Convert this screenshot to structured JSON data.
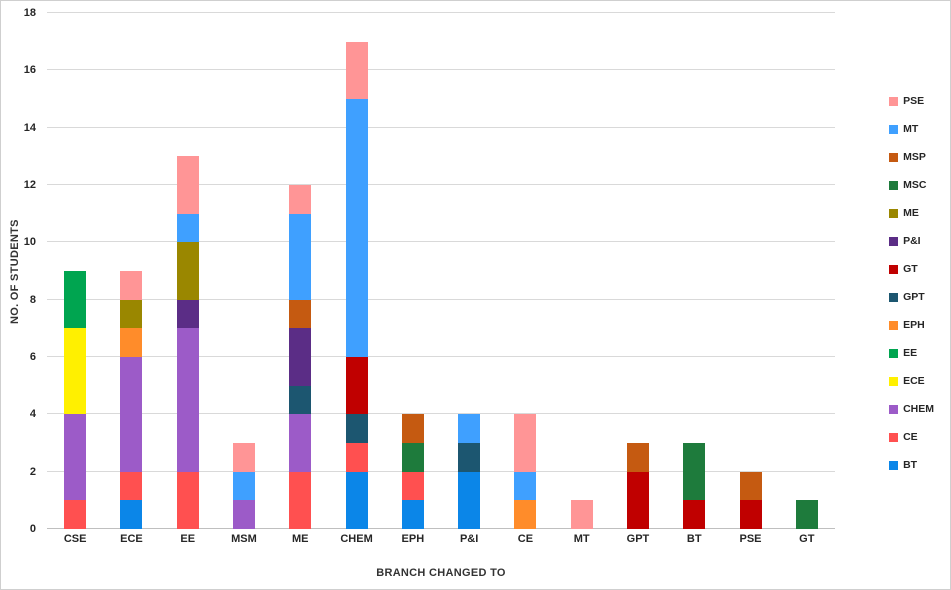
{
  "chart_data": {
    "type": "bar",
    "stacked": true,
    "title": "",
    "xlabel": "BRANCH CHANGED TO",
    "ylabel": "NO. OF STUDENTS",
    "ylim": [
      0,
      18
    ],
    "ytick_step": 2,
    "grid": true,
    "legend_position": "right",
    "categories": [
      "CSE",
      "ECE",
      "EE",
      "MSM",
      "ME",
      "CHEM",
      "EPH",
      "P&I",
      "CE",
      "MT",
      "GPT",
      "BT",
      "PSE",
      "GT"
    ],
    "series": [
      {
        "name": "BT",
        "color": "#0B86E8",
        "values": [
          0,
          1,
          0,
          0,
          0,
          2,
          1,
          2,
          0,
          0,
          0,
          0,
          0,
          0
        ]
      },
      {
        "name": "CE",
        "color": "#FF5050",
        "values": [
          1,
          1,
          2,
          0,
          2,
          1,
          1,
          0,
          0,
          0,
          0,
          0,
          0,
          0
        ]
      },
      {
        "name": "CHEM",
        "color": "#9C5BC8",
        "values": [
          3,
          4,
          5,
          1,
          2,
          0,
          0,
          0,
          0,
          0,
          0,
          0,
          0,
          0
        ]
      },
      {
        "name": "ECE",
        "color": "#FFF000",
        "values": [
          3,
          0,
          0,
          0,
          0,
          0,
          0,
          0,
          0,
          0,
          0,
          0,
          0,
          0
        ]
      },
      {
        "name": "EE",
        "color": "#00A550",
        "values": [
          2,
          0,
          0,
          0,
          0,
          0,
          0,
          0,
          0,
          0,
          0,
          0,
          0,
          0
        ]
      },
      {
        "name": "EPH",
        "color": "#FF8C2A",
        "values": [
          0,
          1,
          0,
          0,
          0,
          0,
          0,
          0,
          1,
          0,
          0,
          0,
          0,
          0
        ]
      },
      {
        "name": "GPT",
        "color": "#1C5670",
        "values": [
          0,
          0,
          0,
          0,
          1,
          1,
          0,
          1,
          0,
          0,
          0,
          0,
          0,
          0
        ]
      },
      {
        "name": "GT",
        "color": "#C00000",
        "values": [
          0,
          0,
          0,
          0,
          0,
          2,
          0,
          0,
          0,
          0,
          2,
          1,
          1,
          0
        ]
      },
      {
        "name": "P&I",
        "color": "#5B2D86",
        "values": [
          0,
          0,
          1,
          0,
          2,
          0,
          0,
          0,
          0,
          0,
          0,
          0,
          0,
          0
        ]
      },
      {
        "name": "ME",
        "color": "#9A8700",
        "values": [
          0,
          1,
          2,
          0,
          0,
          0,
          0,
          0,
          0,
          0,
          0,
          0,
          0,
          0
        ]
      },
      {
        "name": "MSC",
        "color": "#1E7B3C",
        "values": [
          0,
          0,
          0,
          0,
          0,
          0,
          1,
          0,
          0,
          0,
          0,
          2,
          0,
          1
        ]
      },
      {
        "name": "MSP",
        "color": "#C55A11",
        "values": [
          0,
          0,
          0,
          0,
          1,
          0,
          1,
          0,
          0,
          0,
          1,
          0,
          1,
          0
        ]
      },
      {
        "name": "MT",
        "color": "#3FA0FF",
        "values": [
          0,
          0,
          1,
          1,
          3,
          9,
          0,
          1,
          1,
          0,
          0,
          0,
          0,
          0
        ]
      },
      {
        "name": "PSE",
        "color": "#FF9596",
        "values": [
          0,
          1,
          2,
          1,
          1,
          2,
          0,
          0,
          2,
          1,
          0,
          0,
          0,
          0
        ]
      }
    ]
  }
}
